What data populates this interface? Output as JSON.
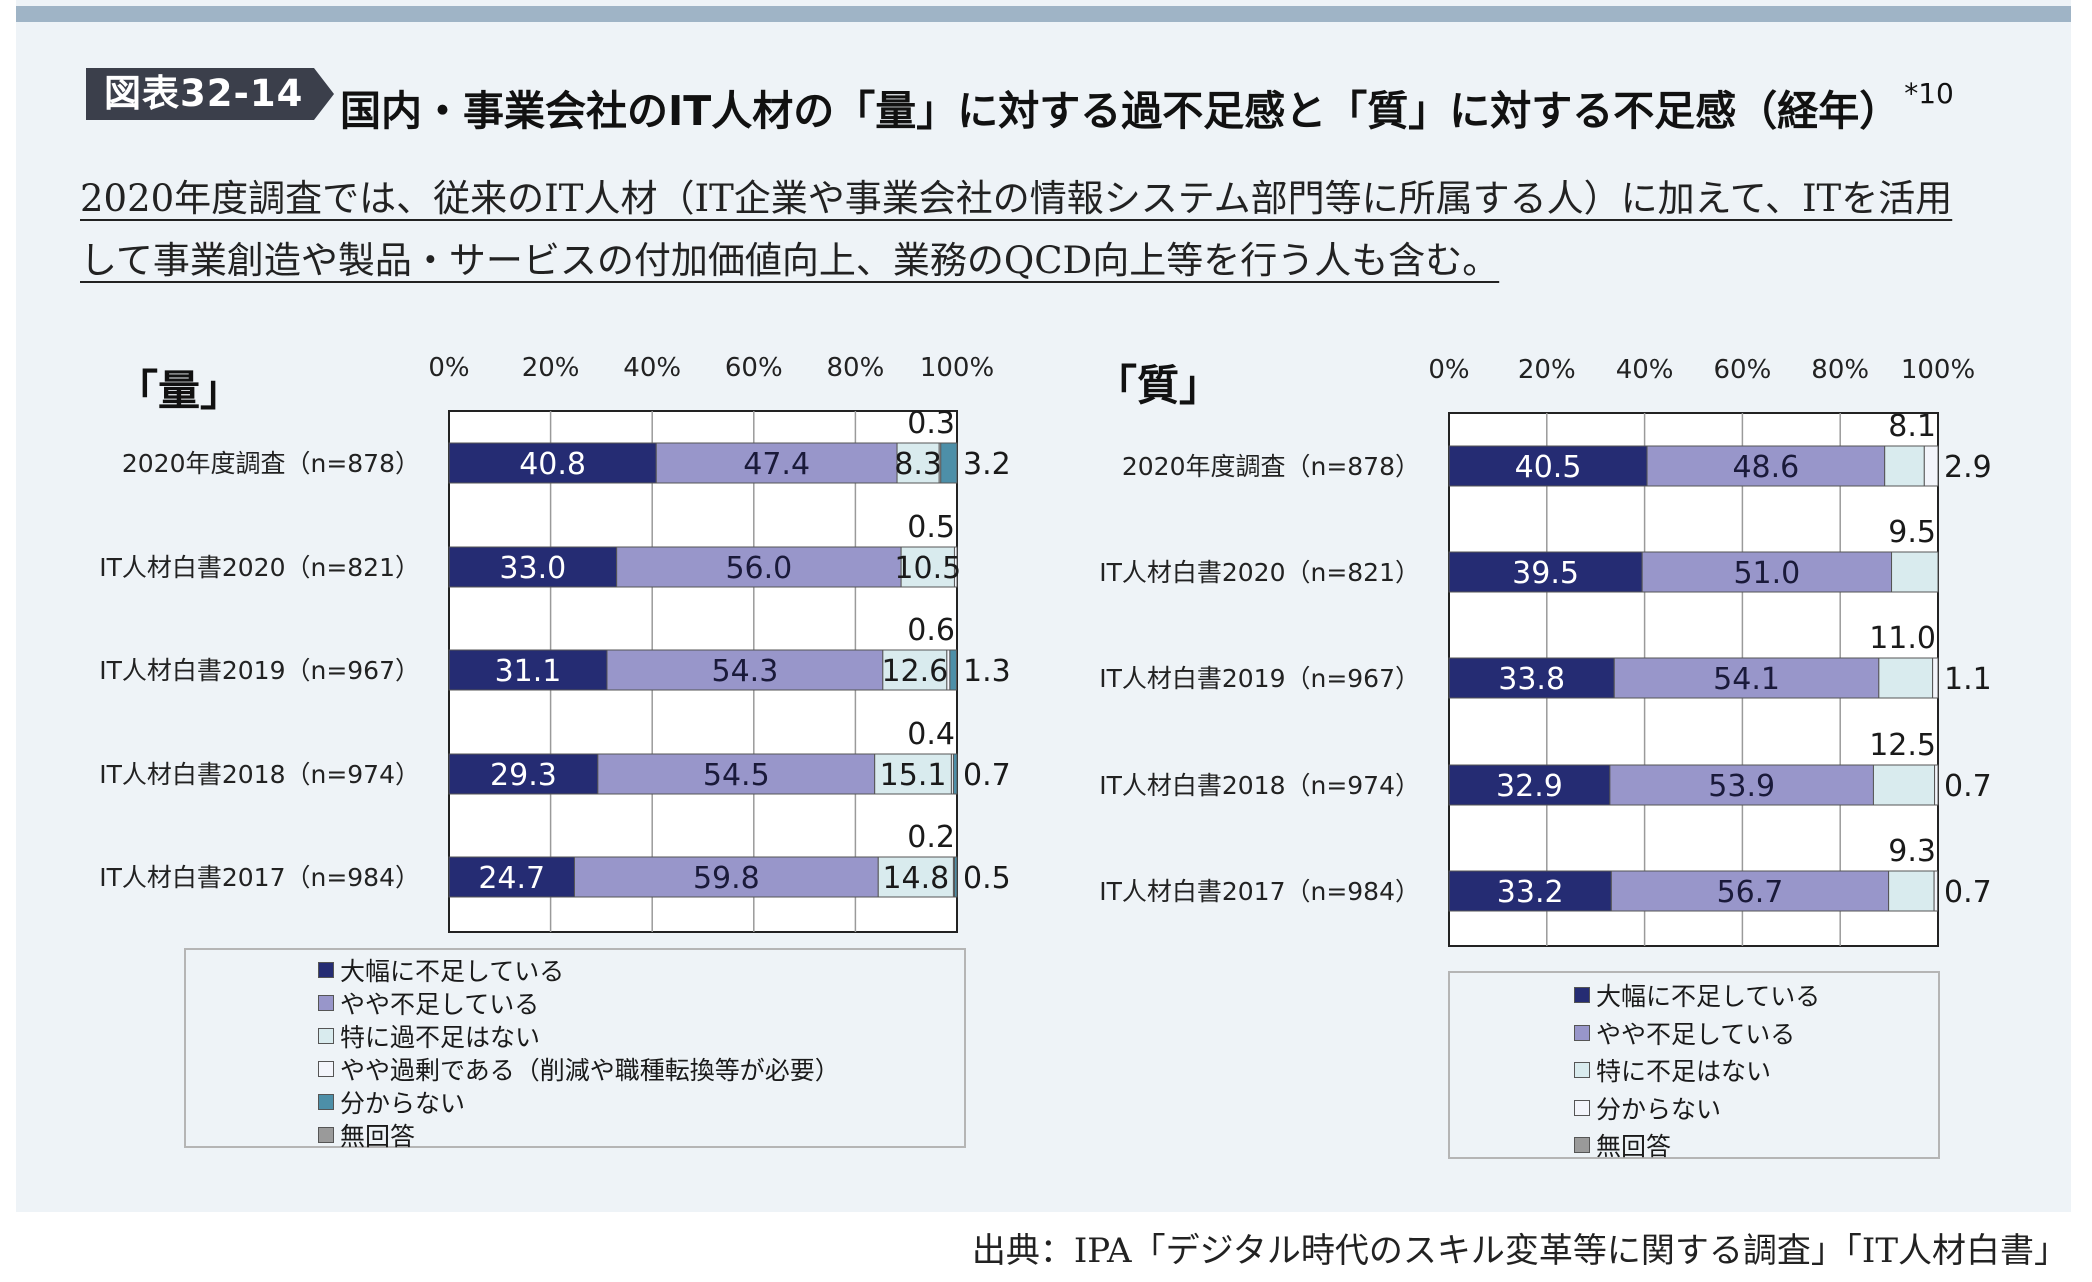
{
  "header": {
    "figure_label": "図表32-14",
    "title": "国内・事業会社のIT人材の「量」に対する過不足感と「質」に対する不足感（経年）",
    "footnote_mark": "*10"
  },
  "note": {
    "line1": "2020年度調査では、従来のIT人材（IT企業や事業会社の情報システム部門等に所属する人）に加えて、ITを活用",
    "line2": "して事業創造や製品・サービスの付加価値向上、業務のQCD向上等を行う人も含む。"
  },
  "source": "出典：IPA「デジタル時代のスキル変革等に関する調査」「IT人材白書」",
  "colors": {
    "panel_bg": "#eef3f7",
    "series": [
      "#252c73",
      "#9896ca",
      "#d9ebee",
      "#f3f5fb",
      "#4d8fa8",
      "#9a9a9a"
    ],
    "quality_series": [
      "#252c73",
      "#9896ca",
      "#d9ebee",
      "#f3f5fb",
      "#9a9a9a"
    ]
  },
  "chart_data": [
    {
      "type": "bar",
      "orientation": "horizontal",
      "stacked": true,
      "title": "「量」",
      "xlim": [
        0,
        100
      ],
      "x_ticks": [
        "0%",
        "20%",
        "40%",
        "60%",
        "80%",
        "100%"
      ],
      "categories": [
        "2020年度調査（n=878）",
        "IT人材白書2020（n=821）",
        "IT人材白書2019（n=967）",
        "IT人材白書2018（n=974）",
        "IT人材白書2017（n=984）"
      ],
      "series": [
        {
          "name": "大幅に不足している",
          "values": [
            40.8,
            33.0,
            31.1,
            29.3,
            24.7
          ]
        },
        {
          "name": "やや不足している",
          "values": [
            47.4,
            56.0,
            54.3,
            54.5,
            59.8
          ]
        },
        {
          "name": "特に過不足はない",
          "values": [
            8.3,
            10.5,
            12.6,
            15.1,
            14.8
          ]
        },
        {
          "name": "やや過剰である（削減や職種転換等が必要）",
          "values": [
            0.3,
            0.5,
            0.6,
            0.4,
            0.2
          ]
        },
        {
          "name": "分からない",
          "values": [
            3.2,
            0,
            1.3,
            0.7,
            0.5
          ]
        },
        {
          "name": "無回答",
          "values": [
            0,
            0,
            0,
            0,
            0
          ]
        }
      ],
      "labels": [
        {
          "s0": "40.8",
          "s1": "47.4",
          "s2": "8.3",
          "top": "0.3",
          "right": "3.2"
        },
        {
          "s0": "33.0",
          "s1": "56.0",
          "s2": "10.5",
          "top": "0.5",
          "right": ""
        },
        {
          "s0": "31.1",
          "s1": "54.3",
          "s2": "12.6",
          "top": "0.6",
          "right": "1.3"
        },
        {
          "s0": "29.3",
          "s1": "54.5",
          "s2": "15.1",
          "top": "0.4",
          "right": "0.7"
        },
        {
          "s0": "24.7",
          "s1": "59.8",
          "s2": "14.8",
          "top": "0.2",
          "right": "0.5"
        }
      ],
      "legend": [
        "大幅に不足している",
        "やや不足している",
        "特に過不足はない",
        "やや過剰である（削減や職種転換等が必要）",
        "分からない",
        "無回答"
      ],
      "legend_position": "bottom"
    },
    {
      "type": "bar",
      "orientation": "horizontal",
      "stacked": true,
      "title": "「質」",
      "xlim": [
        0,
        100
      ],
      "x_ticks": [
        "0%",
        "20%",
        "40%",
        "60%",
        "80%",
        "100%"
      ],
      "categories": [
        "2020年度調査（n=878）",
        "IT人材白書2020（n=821）",
        "IT人材白書2019（n=967）",
        "IT人材白書2018（n=974）",
        "IT人材白書2017（n=984）"
      ],
      "series": [
        {
          "name": "大幅に不足している",
          "values": [
            40.5,
            39.5,
            33.8,
            32.9,
            33.2
          ]
        },
        {
          "name": "やや不足している",
          "values": [
            48.6,
            51.0,
            54.1,
            53.9,
            56.7
          ]
        },
        {
          "name": "特に不足はない",
          "values": [
            8.1,
            9.5,
            11.0,
            12.5,
            9.3
          ]
        },
        {
          "name": "分からない",
          "values": [
            2.9,
            0,
            1.1,
            0.7,
            0.7
          ]
        },
        {
          "name": "無回答",
          "values": [
            0,
            0,
            0,
            0,
            0
          ]
        }
      ],
      "labels": [
        {
          "s0": "40.5",
          "s1": "48.6",
          "top": "8.1",
          "right": "2.9"
        },
        {
          "s0": "39.5",
          "s1": "51.0",
          "top": "9.5",
          "right": ""
        },
        {
          "s0": "33.8",
          "s1": "54.1",
          "top": "11.0",
          "right": "1.1"
        },
        {
          "s0": "32.9",
          "s1": "53.9",
          "top": "12.5",
          "right": "0.7"
        },
        {
          "s0": "33.2",
          "s1": "56.7",
          "top": "9.3",
          "right": "0.7"
        }
      ],
      "legend": [
        "大幅に不足している",
        "やや不足している",
        "特に不足はない",
        "分からない",
        "無回答"
      ],
      "legend_position": "bottom"
    }
  ]
}
